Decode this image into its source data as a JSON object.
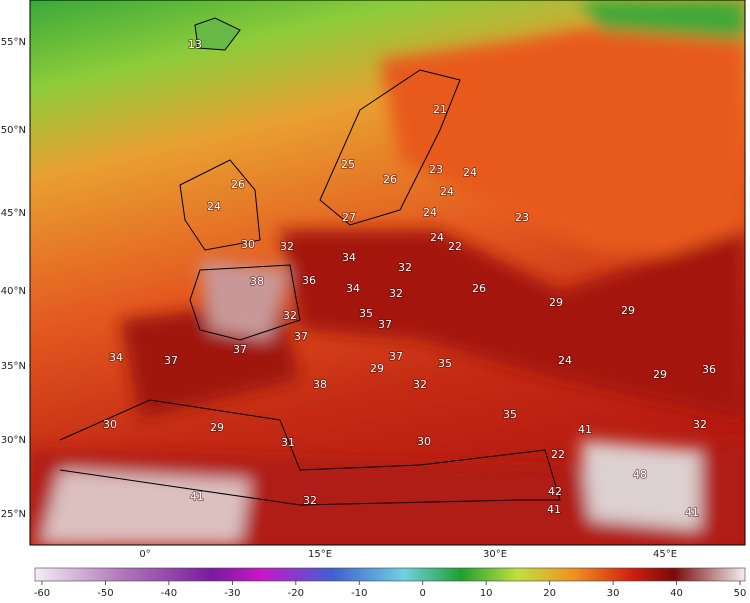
{
  "map": {
    "lat_labels": [
      "55°N",
      "50°N",
      "45°N",
      "40°N",
      "35°N",
      "30°N",
      "25°N"
    ],
    "lon_labels": [
      "0°",
      "15°E",
      "30°E",
      "45°E"
    ],
    "temperature_labels": [
      "13",
      "21",
      "25",
      "26",
      "23",
      "24",
      "26",
      "24",
      "24",
      "27",
      "24",
      "23",
      "24",
      "22",
      "30",
      "32",
      "34",
      "32",
      "38",
      "36",
      "34",
      "32",
      "26",
      "29",
      "29",
      "32",
      "35",
      "37",
      "37",
      "37",
      "37",
      "34",
      "37",
      "35",
      "24",
      "29",
      "29",
      "36",
      "38",
      "32",
      "35",
      "30",
      "29",
      "31",
      "41",
      "30",
      "32",
      "22",
      "48",
      "41",
      "32",
      "42",
      "41",
      "41"
    ]
  },
  "colorbar": {
    "ticks": [
      -60,
      -50,
      -40,
      -30,
      -20,
      -10,
      0,
      10,
      20,
      30,
      40,
      50
    ]
  }
}
